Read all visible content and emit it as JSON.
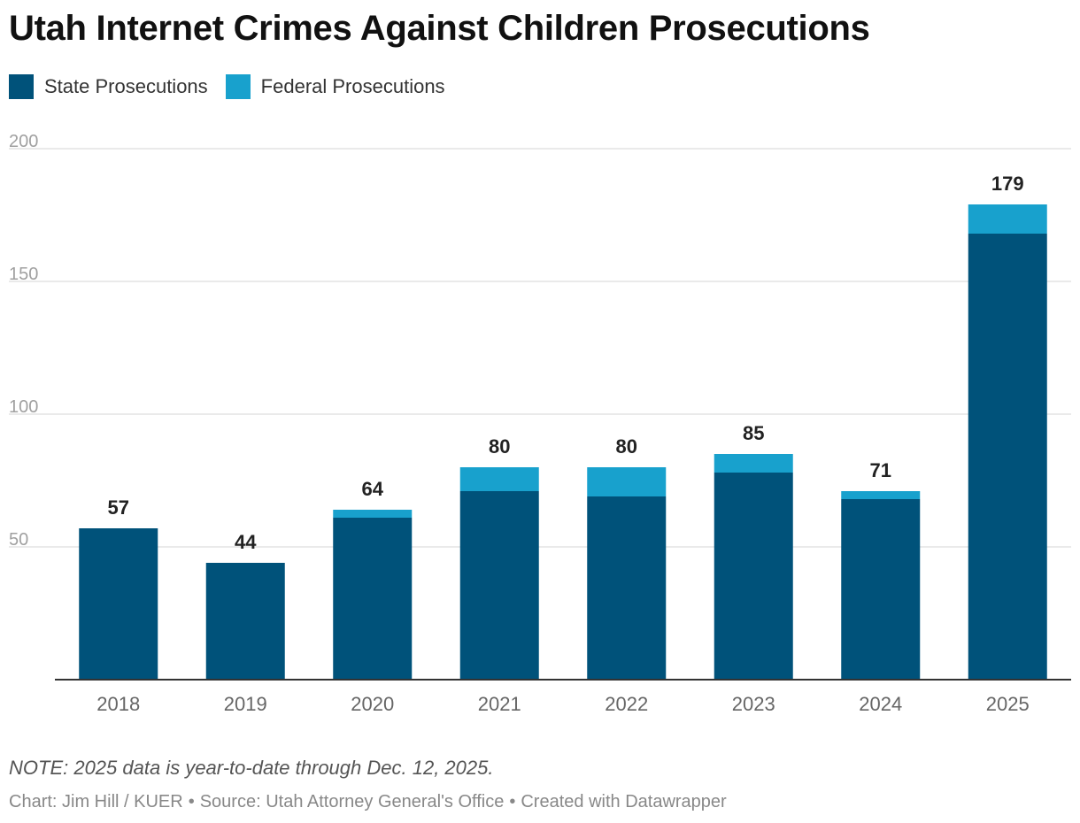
{
  "chart_data": {
    "type": "bar",
    "stacked": true,
    "title": "Utah Internet Crimes Against Children Prosecutions",
    "categories": [
      "2018",
      "2019",
      "2020",
      "2021",
      "2022",
      "2023",
      "2024",
      "2025"
    ],
    "series": [
      {
        "name": "State Prosecutions",
        "color": "#00527a",
        "values": [
          57,
          44,
          61,
          71,
          69,
          78,
          68,
          168
        ]
      },
      {
        "name": "Federal Prosecutions",
        "color": "#18a1cd",
        "values": [
          0,
          0,
          3,
          9,
          11,
          7,
          3,
          11
        ]
      }
    ],
    "totals": [
      57,
      44,
      64,
      80,
      80,
      85,
      71,
      179
    ],
    "ylim": [
      0,
      200
    ],
    "yticks": [
      50,
      100,
      150,
      200
    ],
    "xlabel": "",
    "ylabel": "",
    "grid": true,
    "legend_position": "top-left"
  },
  "footer": {
    "note": "NOTE: 2025 data is year-to-date through Dec. 12, 2025.",
    "credit": "Chart: Jim Hill / KUER",
    "source": "Source: Utah Attorney General's Office",
    "created": "Created with Datawrapper",
    "separator": "•"
  }
}
